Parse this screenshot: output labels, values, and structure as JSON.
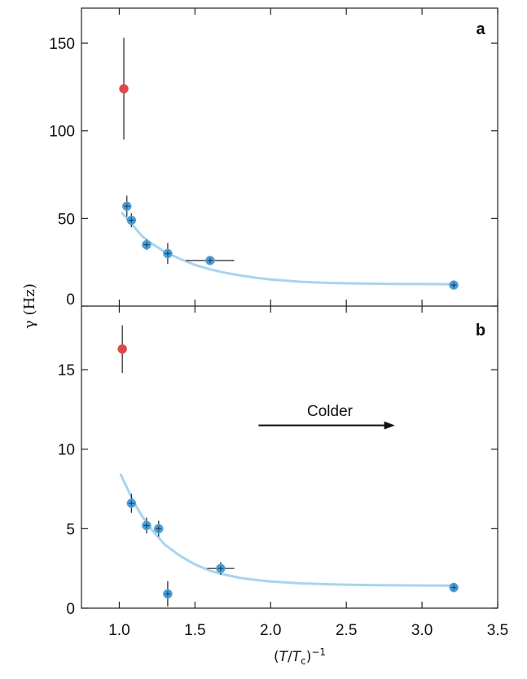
{
  "chart_data": [
    {
      "type": "scatter",
      "panel": "a",
      "panel_label": "a",
      "xlim": [
        0.75,
        3.5
      ],
      "ylim": [
        0,
        170
      ],
      "yticks": [
        0,
        50,
        100,
        150
      ],
      "ytick_labels": [
        "0",
        "50",
        "100",
        "150"
      ],
      "ylabel": "γ (Hz)",
      "colors": {
        "blue": "#4a9ed8",
        "red": "#e0474c",
        "fit": "#a8d4ef"
      },
      "series": [
        {
          "name": "red",
          "points": [
            {
              "x": 1.03,
              "y": 124,
              "yerr": 29,
              "xerr": 0
            }
          ]
        },
        {
          "name": "blue",
          "points": [
            {
              "x": 1.05,
              "y": 57,
              "yerr": 6,
              "xerr": 0
            },
            {
              "x": 1.08,
              "y": 49,
              "yerr": 4,
              "xerr": 0
            },
            {
              "x": 1.18,
              "y": 35,
              "yerr": 3,
              "xerr": 0
            },
            {
              "x": 1.32,
              "y": 30,
              "yerr": 6,
              "xerr": 0
            },
            {
              "x": 1.6,
              "y": 26,
              "yerr": 0,
              "xerr": 0.16
            },
            {
              "x": 3.21,
              "y": 12,
              "yerr": 0,
              "xerr": 0
            }
          ]
        }
      ],
      "fit": {
        "name": "fit",
        "x": [
          1.02,
          1.05,
          1.1,
          1.15,
          1.2,
          1.3,
          1.4,
          1.5,
          1.6,
          1.7,
          1.8,
          1.9,
          2.0,
          2.2,
          2.4,
          2.6,
          2.8,
          3.0,
          3.21
        ],
        "y": [
          53,
          50,
          45,
          40,
          36.5,
          31,
          27,
          23.5,
          21,
          19,
          17.5,
          16.2,
          15.2,
          13.9,
          13.2,
          12.9,
          12.7,
          12.6,
          12.5
        ]
      }
    },
    {
      "type": "scatter",
      "panel": "b",
      "panel_label": "b",
      "xlim": [
        0.75,
        3.5
      ],
      "ylim": [
        0,
        19
      ],
      "yticks": [
        0,
        5,
        10,
        15
      ],
      "ytick_labels": [
        "0",
        "5",
        "10",
        "15"
      ],
      "xticks": [
        1.0,
        1.5,
        2.0,
        2.5,
        3.0,
        3.5
      ],
      "xtick_labels": [
        "1.0",
        "1.5",
        "2.0",
        "2.5",
        "3.0",
        "3.5"
      ],
      "xlabel": "(T/Tc)−1",
      "xlabel_parts": {
        "open": "(",
        "t": "T",
        "slash": "/",
        "tc": "T",
        "c": "c",
        "close": ")",
        "exp": "−1"
      },
      "annotation": {
        "text": "Colder",
        "arrow_from_x": 1.92,
        "arrow_to_x": 2.82,
        "y": 11.5
      },
      "colors": {
        "blue": "#4a9ed8",
        "red": "#e0474c",
        "fit": "#a8d4ef"
      },
      "series": [
        {
          "name": "red",
          "points": [
            {
              "x": 1.02,
              "y": 16.3,
              "yerr": 1.5,
              "xerr": 0
            }
          ]
        },
        {
          "name": "blue",
          "points": [
            {
              "x": 1.08,
              "y": 6.6,
              "yerr": 0.6,
              "xerr": 0
            },
            {
              "x": 1.18,
              "y": 5.2,
              "yerr": 0.5,
              "xerr": 0
            },
            {
              "x": 1.26,
              "y": 5.0,
              "yerr": 0.5,
              "xerr": 0
            },
            {
              "x": 1.32,
              "y": 0.9,
              "yerr": 0.8,
              "xerr": 0
            },
            {
              "x": 1.67,
              "y": 2.5,
              "yerr": 0.4,
              "xerr": 0.09
            },
            {
              "x": 3.21,
              "y": 1.3,
              "yerr": 0.3,
              "xerr": 0
            }
          ]
        }
      ],
      "fit": {
        "name": "fit",
        "x": [
          1.01,
          1.05,
          1.1,
          1.15,
          1.2,
          1.3,
          1.4,
          1.5,
          1.6,
          1.7,
          1.8,
          1.9,
          2.0,
          2.2,
          2.4,
          2.6,
          2.8,
          3.0,
          3.21
        ],
        "y": [
          8.4,
          7.6,
          6.6,
          5.8,
          5.1,
          4.0,
          3.3,
          2.75,
          2.35,
          2.1,
          1.9,
          1.78,
          1.68,
          1.56,
          1.5,
          1.46,
          1.44,
          1.43,
          1.42
        ]
      }
    }
  ]
}
